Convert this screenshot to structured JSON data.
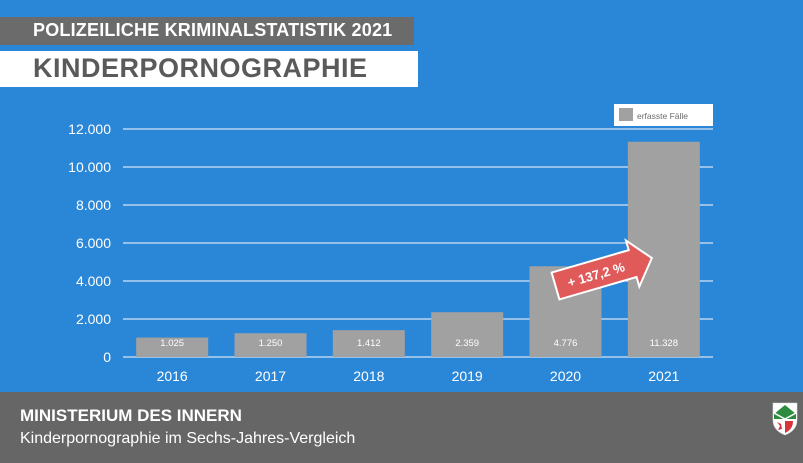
{
  "header": {
    "kicker": "POLIZEILICHE KRIMINALSTATISTIK 2021",
    "title": "KINDERPORNOGRAPHIE"
  },
  "footer": {
    "ministry": "MINISTERIUM DES INNERN",
    "subtitle": "Kinderpornographie im Sechs-Jahres-Vergleich",
    "crest_icon": "nrw-coat-of-arms-icon"
  },
  "colors": {
    "background": "#2a86d6",
    "bar": "#a1a1a1",
    "arrow": "#e05a5a",
    "footer": "#666666"
  },
  "chart_data": {
    "type": "bar",
    "categories": [
      "2016",
      "2017",
      "2018",
      "2019",
      "2020",
      "2021"
    ],
    "series": [
      {
        "name": "erfasste Fälle",
        "values": [
          1025,
          1250,
          1412,
          2359,
          4776,
          11328
        ],
        "labels": [
          "1.025",
          "1.250",
          "1.412",
          "2.359",
          "4.776",
          "11.328"
        ]
      }
    ],
    "ylim": [
      0,
      12000
    ],
    "yticks": [
      0,
      2000,
      4000,
      6000,
      8000,
      10000,
      12000
    ],
    "ytick_labels": [
      "0",
      "2.000",
      "4.000",
      "6.000",
      "8.000",
      "10.000",
      "12.000"
    ],
    "grid": true,
    "legend_position": "top-right",
    "annotation": {
      "text": "+ 137,2 %",
      "from": "2020",
      "to": "2021"
    }
  }
}
